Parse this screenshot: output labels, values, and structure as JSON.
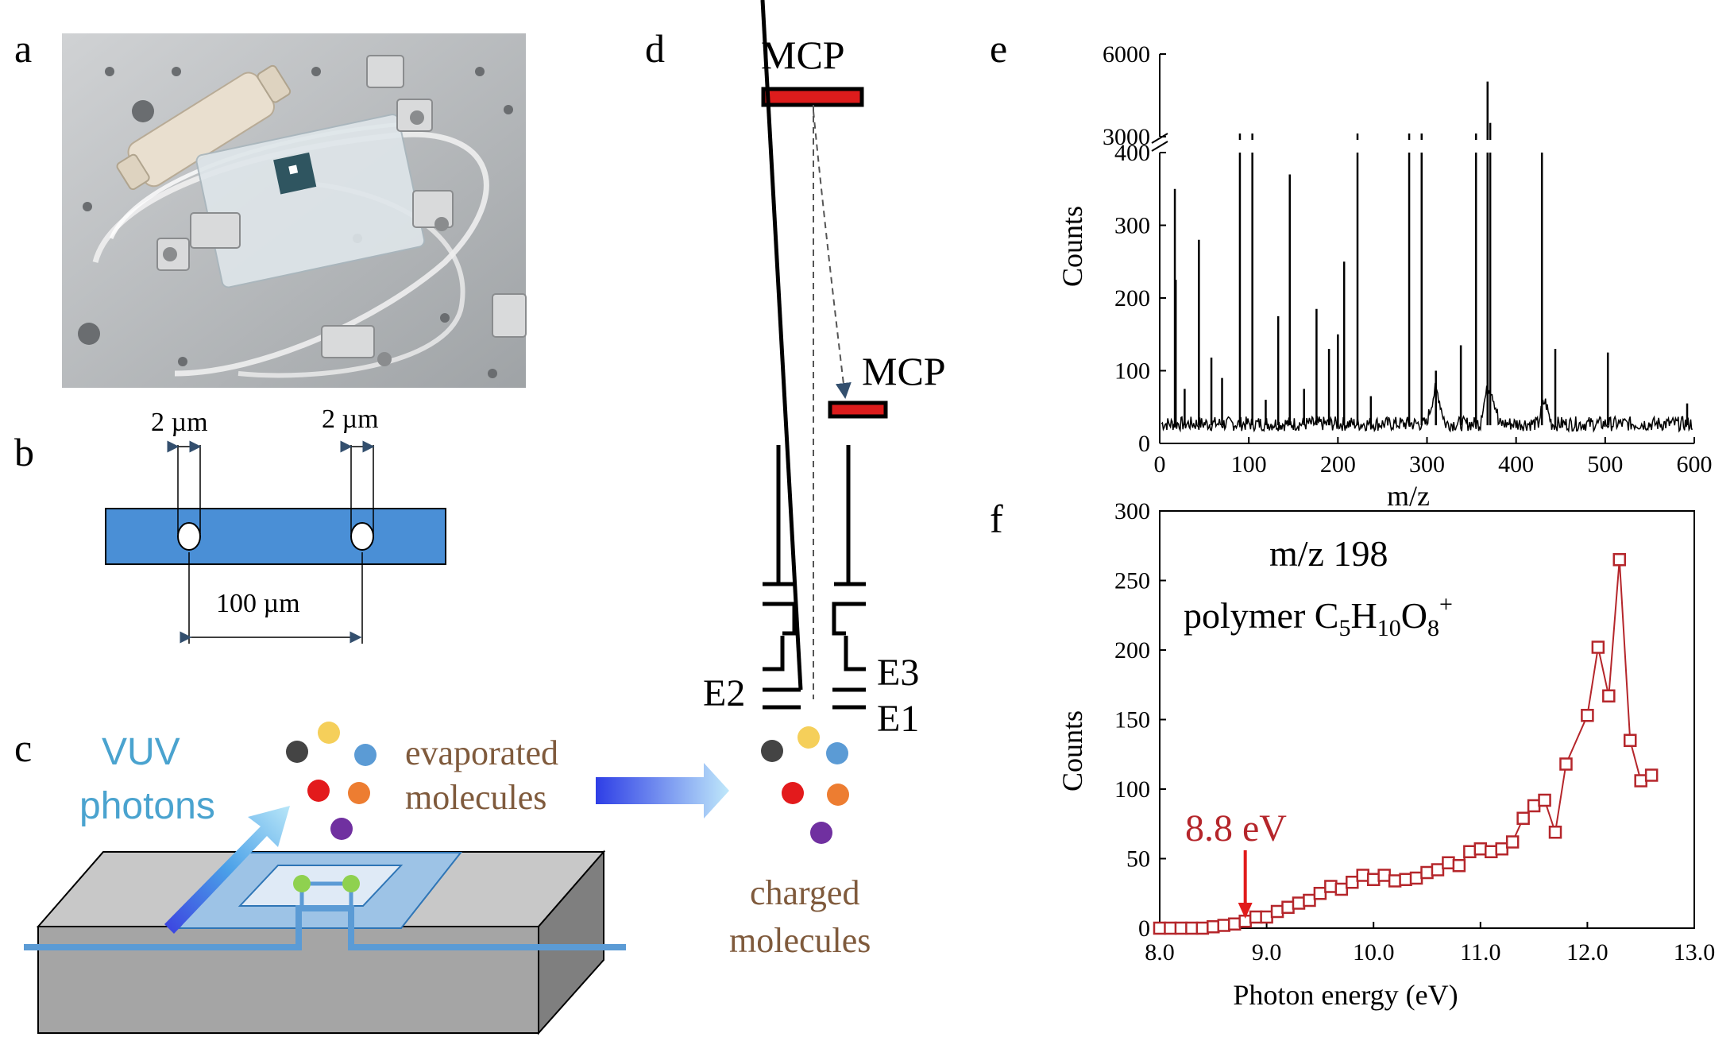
{
  "panels": {
    "a": {
      "label": "a"
    },
    "b": {
      "label": "b",
      "dim_left": "2 µm",
      "dim_right": "2 µm",
      "dim_spacing": "100 µm"
    },
    "c": {
      "label": "c",
      "vuv_line1": "VUV",
      "vuv_line2": "photons",
      "evap_line1": "evaporated",
      "evap_line2": "molecules"
    },
    "d": {
      "label": "d",
      "mcp_top": "MCP",
      "mcp_side": "MCP",
      "e1": "E1",
      "e2": "E2",
      "e3": "E3",
      "charged_line1": "charged",
      "charged_line2": "molecules"
    },
    "e": {
      "label": "e"
    },
    "f": {
      "label": "f",
      "annotation": "8.8 eV",
      "title_line1": "m/z 198",
      "title_prefix": "polymer C",
      "sub5": "5",
      "mid_h": "H",
      "sub10": "10",
      "mid_o": "O",
      "sub8": "8",
      "sup_plus": "+"
    }
  },
  "colors": {
    "chip_blue": "#4a8fd6",
    "mcp_red": "#dd1c1c",
    "series_red": "#b5262b",
    "tube_blue": "#5b9bd5",
    "dot_dark": "#444444",
    "dot_yellow": "#f5cf5a",
    "dot_blue": "#5b9bd5",
    "dot_red": "#e31a1c",
    "dot_orange": "#ed7d31",
    "dot_purple": "#7030a0",
    "green_node": "#8fd14f"
  },
  "chart_data": [
    {
      "id": "e",
      "type": "line",
      "title": "",
      "xlabel": "m/z",
      "ylabel": "Counts",
      "xlim": [
        0,
        600
      ],
      "x_ticks": [
        0,
        100,
        200,
        300,
        400,
        500,
        600
      ],
      "ylim_lower": [
        0,
        400
      ],
      "ylim_upper": [
        3000,
        6000
      ],
      "y_ticks_lower": [
        0,
        100,
        200,
        300,
        400
      ],
      "y_ticks_upper": [
        3000,
        6000
      ],
      "axis_break": "between 400 and 3000",
      "baseline": 25,
      "peaks": [
        {
          "x": 17,
          "y": 350
        },
        {
          "x": 18,
          "y": 225
        },
        {
          "x": 28,
          "y": 75
        },
        {
          "x": 44,
          "y": 280
        },
        {
          "x": 58,
          "y": 118
        },
        {
          "x": 70,
          "y": 90
        },
        {
          "x": 90,
          "y": 405
        },
        {
          "x": 104,
          "y": 410
        },
        {
          "x": 119,
          "y": 60
        },
        {
          "x": 133,
          "y": 175
        },
        {
          "x": 146,
          "y": 370
        },
        {
          "x": 162,
          "y": 75
        },
        {
          "x": 176,
          "y": 185
        },
        {
          "x": 190,
          "y": 130
        },
        {
          "x": 200,
          "y": 150
        },
        {
          "x": 207,
          "y": 250
        },
        {
          "x": 222,
          "y": 405
        },
        {
          "x": 237,
          "y": 65
        },
        {
          "x": 280,
          "y": 405
        },
        {
          "x": 294,
          "y": 405
        },
        {
          "x": 310,
          "y": 100
        },
        {
          "x": 338,
          "y": 135
        },
        {
          "x": 355,
          "y": 405
        },
        {
          "x": 368,
          "y": 5000
        },
        {
          "x": 371,
          "y": 3500
        },
        {
          "x": 429,
          "y": 400
        },
        {
          "x": 444,
          "y": 130
        },
        {
          "x": 503,
          "y": 125
        },
        {
          "x": 592,
          "y": 55
        }
      ]
    },
    {
      "id": "f",
      "type": "line",
      "title": "m/z 198 polymer C5H10O8+",
      "xlabel": "Photon energy (eV)",
      "ylabel": "Counts",
      "xlim": [
        8.0,
        13.0
      ],
      "ylim": [
        0,
        300
      ],
      "x_ticks": [
        "8.0",
        "9.0",
        "10.0",
        "11.0",
        "12.0",
        "13.0"
      ],
      "y_ticks": [
        0,
        50,
        100,
        150,
        200,
        250,
        300
      ],
      "marker": "open-square",
      "series": [
        {
          "name": "m/z 198",
          "x": [
            8.0,
            8.1,
            8.2,
            8.3,
            8.4,
            8.5,
            8.6,
            8.7,
            8.8,
            8.9,
            9.0,
            9.1,
            9.2,
            9.3,
            9.4,
            9.5,
            9.6,
            9.7,
            9.8,
            9.9,
            10.0,
            10.1,
            10.2,
            10.3,
            10.4,
            10.5,
            10.6,
            10.7,
            10.8,
            10.9,
            11.0,
            11.1,
            11.2,
            11.3,
            11.4,
            11.5,
            11.6,
            11.7,
            11.8,
            12.0,
            12.1,
            12.2,
            12.3,
            12.4,
            12.5,
            12.6
          ],
          "y": [
            0,
            0,
            0,
            0,
            0,
            1,
            2,
            3,
            5,
            8,
            8,
            12,
            15,
            18,
            20,
            25,
            30,
            28,
            33,
            38,
            35,
            38,
            34,
            35,
            36,
            40,
            42,
            47,
            45,
            55,
            57,
            55,
            57,
            62,
            79,
            88,
            92,
            69,
            118,
            153,
            202,
            167,
            265,
            135,
            106,
            110
          ]
        }
      ],
      "annotations": [
        {
          "text": "8.8 eV",
          "x": 8.8
        }
      ]
    }
  ]
}
